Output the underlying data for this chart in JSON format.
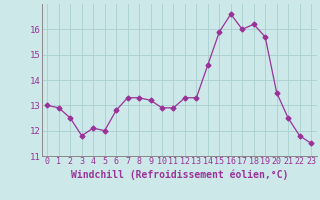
{
  "x": [
    0,
    1,
    2,
    3,
    4,
    5,
    6,
    7,
    8,
    9,
    10,
    11,
    12,
    13,
    14,
    15,
    16,
    17,
    18,
    19,
    20,
    21,
    22,
    23
  ],
  "y": [
    13.0,
    12.9,
    12.5,
    11.8,
    12.1,
    12.0,
    12.8,
    13.3,
    13.3,
    13.2,
    12.9,
    12.9,
    13.3,
    13.3,
    14.6,
    15.9,
    16.6,
    16.0,
    16.2,
    15.7,
    13.5,
    12.5,
    11.8,
    11.5
  ],
  "line_color": "#993399",
  "marker": "D",
  "marker_size": 2.5,
  "bg_color": "#cce8e8",
  "grid_color": "#aacfcf",
  "xlabel": "Windchill (Refroidissement éolien,°C)",
  "xlabel_color": "#993399",
  "tick_color": "#993399",
  "ylim": [
    11,
    17
  ],
  "yticks": [
    11,
    12,
    13,
    14,
    15,
    16
  ],
  "xticks": [
    0,
    1,
    2,
    3,
    4,
    5,
    6,
    7,
    8,
    9,
    10,
    11,
    12,
    13,
    14,
    15,
    16,
    17,
    18,
    19,
    20,
    21,
    22,
    23
  ],
  "tick_fontsize": 6.0,
  "xlabel_fontsize": 7.0
}
